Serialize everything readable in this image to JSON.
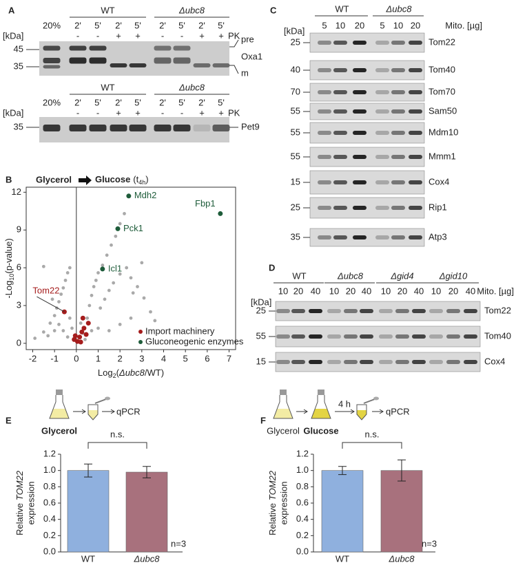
{
  "panel_a": {
    "letter": "A",
    "blots": [
      {
        "input": "20%",
        "groups": [
          "WT",
          "Δubc8"
        ],
        "times": [
          "2'",
          "5'",
          "2'",
          "5'",
          "2'",
          "5'",
          "2'",
          "5'"
        ],
        "pk": [
          "-",
          "-",
          "+",
          "+",
          "-",
          "-",
          "+",
          "+"
        ],
        "pk_label": "PK",
        "kda": "[kDa]",
        "markers": [
          45,
          35
        ],
        "labels": [
          "pre",
          "Oxa1",
          "m"
        ]
      },
      {
        "input": "20%",
        "groups": [
          "WT",
          "Δubc8"
        ],
        "times": [
          "2'",
          "5'",
          "2'",
          "5'",
          "2'",
          "5'",
          "2'",
          "5'"
        ],
        "pk": [
          "-",
          "-",
          "+",
          "+",
          "-",
          "-",
          "+",
          "+"
        ],
        "pk_label": "PK",
        "kda": "[kDa]",
        "markers": [
          35
        ],
        "labels": [
          "Pet9"
        ]
      }
    ]
  },
  "panel_c": {
    "letter": "C",
    "groups": [
      "WT",
      "Δubc8"
    ],
    "amounts": [
      5,
      10,
      20,
      5,
      10,
      20
    ],
    "amount_label": "Mito. [µg]",
    "kda": "[kDa]",
    "rows": [
      {
        "protein": "Tom22",
        "marker": 25
      },
      {
        "protein": "Tom40",
        "marker": 40
      },
      {
        "protein": "Tom70",
        "marker": 70
      },
      {
        "protein": "Sam50",
        "marker": 55
      },
      {
        "protein": "Mdm10",
        "marker": 55
      },
      {
        "protein": "Mmm1",
        "marker": 55
      },
      {
        "protein": "Cox4",
        "marker": 15
      },
      {
        "protein": "Rip1",
        "marker": 25
      },
      {
        "protein": "Atp3",
        "marker": 35
      }
    ]
  },
  "panel_d": {
    "letter": "D",
    "groups": [
      "WT",
      "Δubc8",
      "Δgid4",
      "Δgid10"
    ],
    "amounts": [
      10,
      20,
      40,
      10,
      20,
      40,
      10,
      20,
      40,
      10,
      20,
      40
    ],
    "amount_label": "Mito. [µg]",
    "kda": "[kDa]",
    "rows": [
      {
        "protein": "Tom22",
        "marker": 25
      },
      {
        "protein": "Tom40",
        "marker": 55
      },
      {
        "protein": "Cox4",
        "marker": 15
      }
    ]
  },
  "chart_data": [
    {
      "type": "scatter",
      "panel": "B",
      "title": {
        "left": "Glycerol",
        "right": [
          "Glucose",
          "(t",
          "4h",
          ")"
        ]
      },
      "xlabel": [
        "Log",
        "2",
        "(",
        "Δubc8",
        "/WT)"
      ],
      "ylabel": [
        "-Log",
        "10",
        "(p-value)"
      ],
      "xlim": [
        -2.3,
        7.3
      ],
      "ylim": [
        -0.5,
        12.4
      ],
      "xticks": [
        -2,
        -1,
        0,
        1,
        2,
        3,
        4,
        5,
        6,
        7
      ],
      "yticks": [
        0,
        3,
        6,
        9,
        12
      ],
      "legend": "lower right",
      "series": [
        {
          "color": "#a9a9a9",
          "x": [
            -1.9,
            -1.5,
            -1.2,
            -1.0,
            -0.9,
            -0.8,
            -0.7,
            -0.6,
            -0.5,
            -0.4,
            -0.3,
            -0.8,
            -0.6,
            -0.4,
            -0.3,
            -0.2,
            -0.1,
            -1.3,
            -1.0,
            -1.5,
            -1.1,
            0.3,
            0.5,
            0.6,
            0.7,
            0.8,
            0.9,
            1.0,
            1.2,
            1.4,
            1.6,
            1.8,
            2.0,
            2.2,
            1.1,
            1.3,
            1.5,
            1.7,
            2.0,
            2.3,
            2.5,
            2.8,
            3.1,
            3.4,
            3.6,
            1.0,
            1.5,
            2.0,
            2.5,
            3.0,
            2.6,
            0.4,
            0.2,
            0.7
          ],
          "values": [
            0.4,
            0.9,
            1.6,
            2.2,
            2.8,
            3.3,
            3.9,
            4.4,
            5.0,
            5.6,
            6.0,
            1.5,
            1.0,
            0.5,
            2.0,
            1.2,
            0.4,
            0.6,
            1.0,
            6.1,
            3.5,
            0.8,
            2.0,
            3.0,
            3.8,
            4.5,
            5.0,
            5.6,
            6.2,
            7.0,
            7.8,
            8.5,
            9.5,
            10.3,
            2.8,
            3.5,
            4.2,
            4.8,
            5.5,
            6.0,
            5.2,
            4.5,
            3.6,
            2.5,
            1.8,
            1.2,
            1.0,
            1.5,
            2.0,
            6.4,
            4.0,
            0.3,
            1.6,
            1.0
          ]
        },
        {
          "name": "Import machinery",
          "color": "#a51d1d",
          "x": [
            -0.55,
            -0.1,
            0.05,
            0.15,
            0.25,
            0.35,
            0.45,
            0.55,
            0.2,
            0.3,
            -0.05
          ],
          "values": [
            2.5,
            0.3,
            0.15,
            0.5,
            0.9,
            1.2,
            0.7,
            1.6,
            0.1,
            2.0,
            0.6
          ],
          "labels": [
            "Tom22",
            null,
            null,
            null,
            null,
            null,
            null,
            null,
            null,
            null,
            null
          ]
        },
        {
          "name": "Gluconeogenic enzymes",
          "color": "#1e5c3a",
          "x": [
            2.4,
            6.6,
            1.9,
            1.2
          ],
          "values": [
            11.7,
            10.3,
            9.1,
            5.9
          ],
          "labels": [
            "Mdh2",
            "Fbp1",
            "Pck1",
            "Icl1"
          ]
        }
      ]
    },
    {
      "type": "bar",
      "panel": "E",
      "schematic": {
        "steps": [
          "Glycerol"
        ],
        "readout": "qPCR"
      },
      "categories": [
        "WT",
        "Δubc8"
      ],
      "values": [
        1.0,
        0.98
      ],
      "errors": [
        0.08,
        0.07
      ],
      "colors": [
        "#8fb0de",
        "#a8717d"
      ],
      "ylabel": [
        "Relative",
        "TOM22",
        "expression"
      ],
      "ylim": [
        0,
        1.2
      ],
      "yticks": [
        {
          "value": 0,
          "label": "0.0"
        },
        {
          "value": 0.2,
          "label": "0.2"
        },
        {
          "value": 0.4,
          "label": "0.4"
        },
        {
          "value": 0.6,
          "label": "0.6"
        },
        {
          "value": 0.8,
          "label": "0.8"
        },
        {
          "value": 1,
          "label": "1.0"
        },
        {
          "value": 1.2,
          "label": "1.2"
        }
      ],
      "annotation": "n.s.",
      "n_label": "n=3"
    },
    {
      "type": "bar",
      "panel": "F",
      "schematic": {
        "steps": [
          "Glycerol",
          "Glucose"
        ],
        "time": "4 h",
        "readout": "qPCR"
      },
      "categories": [
        "WT",
        "Δubc8"
      ],
      "values": [
        1.0,
        1.0
      ],
      "errors": [
        0.05,
        0.13
      ],
      "colors": [
        "#8fb0de",
        "#a8717d"
      ],
      "ylabel": [
        "Relative",
        "TOM22",
        "expression"
      ],
      "ylim": [
        0,
        1.2
      ],
      "yticks": [
        {
          "value": 0,
          "label": "0.0"
        },
        {
          "value": 0.2,
          "label": "0.2"
        },
        {
          "value": 0.4,
          "label": "0.4"
        },
        {
          "value": 0.6,
          "label": "0.6"
        },
        {
          "value": 0.8,
          "label": "0.8"
        },
        {
          "value": 1,
          "label": "1.0"
        },
        {
          "value": 1.2,
          "label": "1.2"
        }
      ],
      "annotation": "n.s.",
      "n_label": "n=3"
    }
  ]
}
